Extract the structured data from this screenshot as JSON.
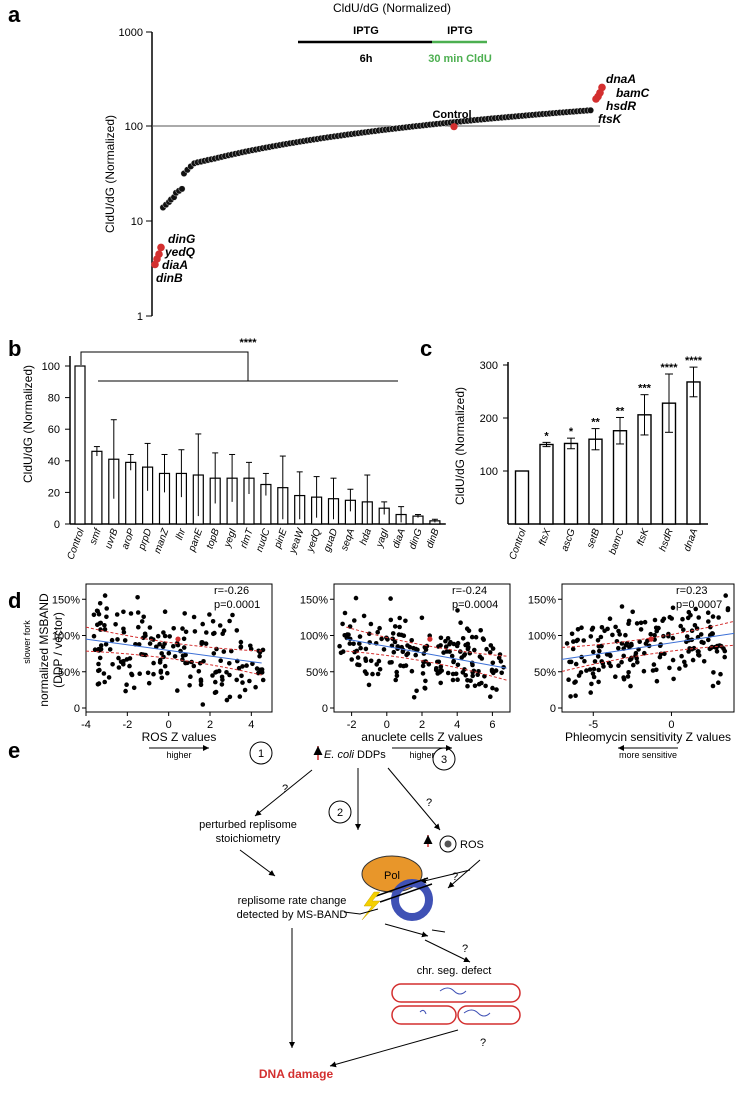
{
  "colors": {
    "highlight": "#d32f2f",
    "black": "#000000",
    "cldu": "#4caf50",
    "pol": "#e8962a",
    "clamp": "#3f51b5",
    "ddp_arrow": "#d32f2f"
  },
  "panel_labels": {
    "a": "a",
    "b": "b",
    "c": "c",
    "d": "d",
    "e": "e"
  },
  "panel_a": {
    "title": "CldU/dG (Normalized)",
    "ylabel": "CldU/dG (Normalized)",
    "yticks": [
      "1000",
      "100",
      "10",
      "1"
    ],
    "timeline": {
      "iptg1": "IPTG",
      "iptg2": "IPTG",
      "dur": "6h",
      "cldu": "30 min CldU"
    },
    "control_label": "Control",
    "high_genes": [
      "dnaA",
      "bamC",
      "hsdR",
      "ftsK"
    ],
    "low_genes": [
      "dinG",
      "yedQ",
      "diaA",
      "dinB"
    ]
  },
  "chart_data": [
    {
      "type": "scatter",
      "panel": "a",
      "title": "CldU/dG (Normalized)",
      "ylabel": "CldU/dG (Normalized)",
      "yscale": "log",
      "ylim": [
        1,
        1000
      ],
      "reference_line": 100,
      "control": {
        "label": "Control",
        "value": 100
      },
      "highlighted": [
        {
          "gene": "dnaA",
          "value": 260
        },
        {
          "gene": "bamC",
          "value": 228
        },
        {
          "gene": "hsdR",
          "value": 208
        },
        {
          "gene": "ftsK",
          "value": 196
        },
        {
          "gene": "dinG",
          "value": 5.3
        },
        {
          "gene": "yedQ",
          "value": 4.5
        },
        {
          "gene": "diaA",
          "value": 4.0
        },
        {
          "gene": "dinB",
          "value": 3.5
        }
      ],
      "rank_range": [
        14,
        160
      ]
    },
    {
      "type": "bar",
      "panel": "b",
      "ylabel": "CldU/dG (Normalized)",
      "ylim": [
        0,
        100
      ],
      "yticks": [
        "0",
        "20",
        "40",
        "60",
        "80",
        "100"
      ],
      "significance": "****",
      "categories": [
        "Control",
        "smf",
        "uvrB",
        "aroP",
        "prpD",
        "manZ",
        "lhr",
        "panE",
        "topB",
        "yegI",
        "rlmT",
        "nudC",
        "pinE",
        "yeaW",
        "yedQ",
        "guaD",
        "seqA",
        "hda",
        "yagI",
        "diaA",
        "dinG",
        "dinB"
      ],
      "values": [
        100,
        46,
        41,
        39,
        36,
        32,
        32,
        31,
        29,
        29,
        29,
        25,
        23,
        18,
        17,
        16,
        15,
        14,
        10,
        6,
        5,
        2
      ],
      "errors": [
        0,
        3,
        25,
        5,
        15,
        12,
        15,
        26,
        16,
        15,
        10,
        7,
        20,
        15,
        13,
        13,
        7,
        17,
        4,
        5,
        1,
        1
      ]
    },
    {
      "type": "bar",
      "panel": "c",
      "ylabel": "CldU/dG (Normalized)",
      "ylim": [
        0,
        320
      ],
      "yticks": [
        "100",
        "200",
        "300"
      ],
      "categories": [
        "Control",
        "ftsX",
        "ascG",
        "setB",
        "bamC",
        "ftsK",
        "hsdR",
        "dnaA"
      ],
      "values": [
        100,
        150,
        152,
        160,
        176,
        206,
        228,
        268
      ],
      "errors": [
        0,
        4,
        10,
        20,
        25,
        38,
        55,
        28
      ],
      "stars": [
        "",
        "*",
        "*",
        "**",
        "**",
        "***",
        "****",
        "****"
      ]
    },
    {
      "type": "scatter",
      "panel": "d1",
      "xlabel": "ROS Z values",
      "ylabel": "normalized MSBAND (DDP / vector)",
      "xlim": [
        -4,
        5
      ],
      "ylim": [
        0,
        160
      ],
      "r": "r=-0.26",
      "p": "p=0.0001",
      "arrow": "higher",
      "fit": [
        [
          -4,
          95
        ],
        [
          4.5,
          62
        ]
      ]
    },
    {
      "type": "scatter",
      "panel": "d2",
      "xlabel": "anuclete cells Z values",
      "xlim": [
        -3,
        7
      ],
      "ylim": [
        0,
        160
      ],
      "r": "r=-0.24",
      "p": "p=0.0004",
      "arrow": "higher",
      "fit": [
        [
          -2.3,
          95
        ],
        [
          6.8,
          55
        ]
      ]
    },
    {
      "type": "scatter",
      "panel": "d3",
      "xlabel": "Phleomycin sensitivity Z values",
      "xlim": [
        -7,
        4
      ],
      "ylim": [
        0,
        160
      ],
      "r": "r=0.23",
      "p": "p=0.0007",
      "arrow": "more sensitive",
      "fit": [
        [
          -7,
          67
        ],
        [
          4,
          103
        ]
      ]
    }
  ],
  "panel_d": {
    "ylabel1": "normalized MSBAND",
    "ylabel2": "(DDP / vector)",
    "side_label": "slower fork",
    "yticks": [
      "0",
      "50%",
      "100%",
      "150%"
    ],
    "xticks1": [
      "-4",
      "-2",
      "0",
      "2",
      "4"
    ],
    "xticks2": [
      "-2",
      "0",
      "2",
      "4",
      "6"
    ],
    "xticks3": [
      "-5",
      "0"
    ]
  },
  "panel_e": {
    "n1": "1",
    "n2": "2",
    "n3": "3",
    "q1": "?",
    "q2": "?",
    "q3": "?",
    "ddp_prefix": "E. coli",
    "ddp_suffix": " DDPs",
    "perturbed1": "perturbed replisome",
    "perturbed2": "stoichiometry",
    "ros": "ROS",
    "pol": "Pol",
    "rate1": "replisome rate change",
    "rate2": "detected by MS-BAND",
    "chr": "chr. seg. defect",
    "damage": "DNA damage"
  }
}
